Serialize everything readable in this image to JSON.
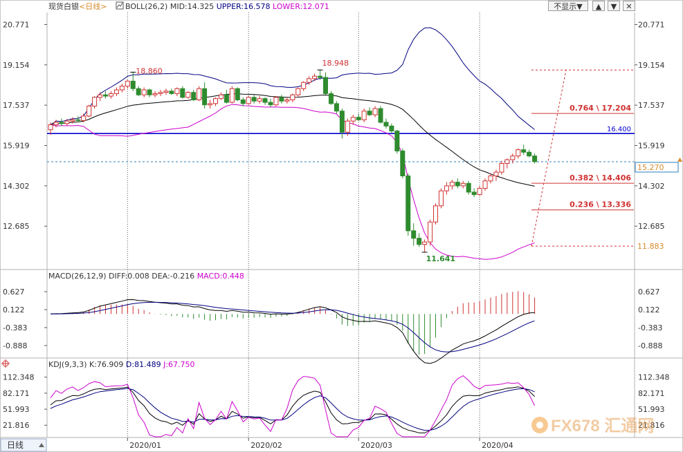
{
  "header": {
    "symbol": "现货白银",
    "period": "<日线>",
    "boll_label": "BOLL(26,2)",
    "mid": "MID:14.325",
    "upper": "UPPER:16.578",
    "lower": "LOWER:12.071",
    "hide_button": "不显示▼",
    "btn_up": "▲",
    "btn_down": "▼",
    "btn_close": "✕"
  },
  "price_panel": {
    "yticks": [
      "20.771",
      "19.154",
      "17.537",
      "15.919",
      "14.302",
      "12.685"
    ],
    "current_price": "15.270",
    "horizontal_line": "16.400",
    "low_tag": "11.883",
    "annotations": {
      "high1": "18.860",
      "high2": "18.948",
      "low": "11.641"
    },
    "fib_levels": [
      {
        "label": "0.764 \\ 17.204",
        "value": 17.204
      },
      {
        "label": "0.382 \\ 14.406",
        "value": 14.406
      },
      {
        "label": "0.236 \\ 13.336",
        "value": 13.336
      }
    ],
    "colors": {
      "up": "#d03030",
      "down": "#2e8b2e",
      "boll": "#000080",
      "lower": "#cc00cc",
      "hline": "#0000cc",
      "current": "#2a7fbf"
    }
  },
  "macd_panel": {
    "label": "MACD(26,12,9)",
    "diff": "DIFF:0.008",
    "dea": "DEA:-0.216",
    "macd": "MACD:0.448",
    "yticks": [
      "0.627",
      "0.122",
      "-0.383",
      "-0.888"
    ]
  },
  "kdj_panel": {
    "label": "KDJ(9,3,3)",
    "k": "K:76.909",
    "d": "D:81.489",
    "j": "J:67.750",
    "yticks": [
      "112.348",
      "82.171",
      "51.993",
      "21.816"
    ]
  },
  "xaxis": {
    "period_tab": "日线",
    "ticks": [
      "2020/01",
      "2020/02",
      "2020/03",
      "2020/04"
    ]
  },
  "watermark": "FX678 汇通网",
  "chart_data": {
    "type": "candlestick",
    "instrument": "现货白银",
    "y_range": [
      11.0,
      21.2
    ],
    "candles": [
      {
        "o": 16.55,
        "h": 16.85,
        "l": 16.35,
        "c": 16.75
      },
      {
        "o": 16.75,
        "h": 16.95,
        "l": 16.65,
        "c": 16.85
      },
      {
        "o": 16.85,
        "h": 17.0,
        "l": 16.7,
        "c": 16.8
      },
      {
        "o": 16.8,
        "h": 16.98,
        "l": 16.72,
        "c": 16.9
      },
      {
        "o": 16.9,
        "h": 17.05,
        "l": 16.8,
        "c": 16.95
      },
      {
        "o": 16.95,
        "h": 17.1,
        "l": 16.85,
        "c": 16.92
      },
      {
        "o": 16.92,
        "h": 17.2,
        "l": 16.85,
        "c": 17.1
      },
      {
        "o": 17.1,
        "h": 17.55,
        "l": 17.05,
        "c": 17.5
      },
      {
        "o": 17.5,
        "h": 17.9,
        "l": 17.4,
        "c": 17.85
      },
      {
        "o": 17.85,
        "h": 18.05,
        "l": 17.7,
        "c": 17.95
      },
      {
        "o": 17.95,
        "h": 18.1,
        "l": 17.8,
        "c": 17.9
      },
      {
        "o": 17.9,
        "h": 18.1,
        "l": 17.8,
        "c": 18.0
      },
      {
        "o": 18.0,
        "h": 18.25,
        "l": 17.9,
        "c": 18.15
      },
      {
        "o": 18.15,
        "h": 18.4,
        "l": 18.05,
        "c": 18.3
      },
      {
        "o": 18.3,
        "h": 18.55,
        "l": 18.2,
        "c": 18.5
      },
      {
        "o": 18.5,
        "h": 18.86,
        "l": 18.1,
        "c": 18.2
      },
      {
        "o": 18.2,
        "h": 18.3,
        "l": 17.9,
        "c": 17.95
      },
      {
        "o": 17.95,
        "h": 18.25,
        "l": 17.85,
        "c": 18.15
      },
      {
        "o": 18.15,
        "h": 18.2,
        "l": 17.85,
        "c": 17.95
      },
      {
        "o": 17.95,
        "h": 18.1,
        "l": 17.85,
        "c": 18.0
      },
      {
        "o": 18.0,
        "h": 18.15,
        "l": 17.9,
        "c": 18.05
      },
      {
        "o": 18.05,
        "h": 18.2,
        "l": 17.95,
        "c": 18.1
      },
      {
        "o": 18.1,
        "h": 18.2,
        "l": 17.95,
        "c": 18.0
      },
      {
        "o": 18.0,
        "h": 18.25,
        "l": 17.9,
        "c": 18.2
      },
      {
        "o": 18.2,
        "h": 18.3,
        "l": 17.8,
        "c": 17.85
      },
      {
        "o": 17.85,
        "h": 18.1,
        "l": 17.8,
        "c": 18.05
      },
      {
        "o": 18.05,
        "h": 18.15,
        "l": 17.7,
        "c": 17.75
      },
      {
        "o": 17.75,
        "h": 18.3,
        "l": 17.7,
        "c": 18.2
      },
      {
        "o": 18.2,
        "h": 18.45,
        "l": 17.4,
        "c": 17.55
      },
      {
        "o": 17.55,
        "h": 17.75,
        "l": 17.4,
        "c": 17.6
      },
      {
        "o": 17.6,
        "h": 17.85,
        "l": 17.5,
        "c": 17.8
      },
      {
        "o": 17.8,
        "h": 18.05,
        "l": 17.75,
        "c": 17.95
      },
      {
        "o": 17.95,
        "h": 18.15,
        "l": 17.6,
        "c": 17.65
      },
      {
        "o": 17.65,
        "h": 18.3,
        "l": 17.6,
        "c": 18.2
      },
      {
        "o": 18.2,
        "h": 18.25,
        "l": 17.7,
        "c": 17.75
      },
      {
        "o": 17.75,
        "h": 17.85,
        "l": 17.5,
        "c": 17.6
      },
      {
        "o": 17.6,
        "h": 17.9,
        "l": 17.55,
        "c": 17.85
      },
      {
        "o": 17.85,
        "h": 17.95,
        "l": 17.6,
        "c": 17.7
      },
      {
        "o": 17.7,
        "h": 17.9,
        "l": 17.6,
        "c": 17.8
      },
      {
        "o": 17.8,
        "h": 17.85,
        "l": 17.55,
        "c": 17.65
      },
      {
        "o": 17.65,
        "h": 17.8,
        "l": 17.45,
        "c": 17.55
      },
      {
        "o": 17.55,
        "h": 17.9,
        "l": 17.5,
        "c": 17.85
      },
      {
        "o": 17.85,
        "h": 17.95,
        "l": 17.6,
        "c": 17.7
      },
      {
        "o": 17.7,
        "h": 17.85,
        "l": 17.6,
        "c": 17.75
      },
      {
        "o": 17.75,
        "h": 18.0,
        "l": 17.65,
        "c": 17.95
      },
      {
        "o": 17.95,
        "h": 18.25,
        "l": 17.85,
        "c": 18.2
      },
      {
        "o": 18.2,
        "h": 18.5,
        "l": 18.1,
        "c": 18.45
      },
      {
        "o": 18.45,
        "h": 18.7,
        "l": 18.35,
        "c": 18.6
      },
      {
        "o": 18.6,
        "h": 18.8,
        "l": 18.5,
        "c": 18.7
      },
      {
        "o": 18.7,
        "h": 18.95,
        "l": 18.55,
        "c": 18.65
      },
      {
        "o": 18.65,
        "h": 18.85,
        "l": 17.95,
        "c": 18.0
      },
      {
        "o": 18.0,
        "h": 18.1,
        "l": 17.55,
        "c": 17.6
      },
      {
        "o": 17.6,
        "h": 17.7,
        "l": 17.2,
        "c": 17.3
      },
      {
        "o": 17.3,
        "h": 17.4,
        "l": 16.2,
        "c": 16.45
      },
      {
        "o": 16.45,
        "h": 17.0,
        "l": 16.3,
        "c": 16.9
      },
      {
        "o": 16.9,
        "h": 17.15,
        "l": 16.75,
        "c": 17.05
      },
      {
        "o": 17.05,
        "h": 17.2,
        "l": 16.9,
        "c": 16.95
      },
      {
        "o": 16.95,
        "h": 17.4,
        "l": 16.85,
        "c": 17.3
      },
      {
        "o": 17.3,
        "h": 17.45,
        "l": 17.1,
        "c": 17.15
      },
      {
        "o": 17.15,
        "h": 17.5,
        "l": 17.05,
        "c": 17.4
      },
      {
        "o": 17.4,
        "h": 17.5,
        "l": 16.8,
        "c": 16.85
      },
      {
        "o": 16.85,
        "h": 17.0,
        "l": 16.6,
        "c": 16.7
      },
      {
        "o": 16.7,
        "h": 16.8,
        "l": 16.4,
        "c": 16.5
      },
      {
        "o": 16.5,
        "h": 16.55,
        "l": 15.6,
        "c": 15.7
      },
      {
        "o": 15.7,
        "h": 15.8,
        "l": 14.6,
        "c": 14.7
      },
      {
        "o": 14.7,
        "h": 14.8,
        "l": 12.3,
        "c": 12.5
      },
      {
        "o": 12.5,
        "h": 12.8,
        "l": 11.9,
        "c": 12.2
      },
      {
        "o": 12.2,
        "h": 12.4,
        "l": 11.85,
        "c": 11.95
      },
      {
        "o": 11.95,
        "h": 12.15,
        "l": 11.64,
        "c": 12.05
      },
      {
        "o": 12.05,
        "h": 12.95,
        "l": 11.9,
        "c": 12.85
      },
      {
        "o": 12.85,
        "h": 13.6,
        "l": 12.75,
        "c": 13.5
      },
      {
        "o": 13.5,
        "h": 14.2,
        "l": 13.4,
        "c": 14.1
      },
      {
        "o": 14.1,
        "h": 14.45,
        "l": 13.95,
        "c": 14.3
      },
      {
        "o": 14.3,
        "h": 14.55,
        "l": 14.15,
        "c": 14.45
      },
      {
        "o": 14.45,
        "h": 14.6,
        "l": 14.2,
        "c": 14.3
      },
      {
        "o": 14.3,
        "h": 14.5,
        "l": 14.2,
        "c": 14.4
      },
      {
        "o": 14.4,
        "h": 14.5,
        "l": 13.95,
        "c": 14.05
      },
      {
        "o": 14.05,
        "h": 14.2,
        "l": 13.85,
        "c": 13.95
      },
      {
        "o": 13.95,
        "h": 14.3,
        "l": 13.9,
        "c": 14.2
      },
      {
        "o": 14.2,
        "h": 14.6,
        "l": 14.1,
        "c": 14.5
      },
      {
        "o": 14.5,
        "h": 14.8,
        "l": 14.4,
        "c": 14.7
      },
      {
        "o": 14.7,
        "h": 14.95,
        "l": 14.5,
        "c": 14.85
      },
      {
        "o": 14.85,
        "h": 15.3,
        "l": 14.75,
        "c": 15.2
      },
      {
        "o": 15.2,
        "h": 15.4,
        "l": 15.0,
        "c": 15.35
      },
      {
        "o": 15.35,
        "h": 15.6,
        "l": 15.2,
        "c": 15.5
      },
      {
        "o": 15.5,
        "h": 15.8,
        "l": 15.4,
        "c": 15.75
      },
      {
        "o": 15.75,
        "h": 15.95,
        "l": 15.55,
        "c": 15.65
      },
      {
        "o": 15.65,
        "h": 15.75,
        "l": 15.45,
        "c": 15.5
      },
      {
        "o": 15.5,
        "h": 15.6,
        "l": 15.2,
        "c": 15.27
      }
    ]
  }
}
